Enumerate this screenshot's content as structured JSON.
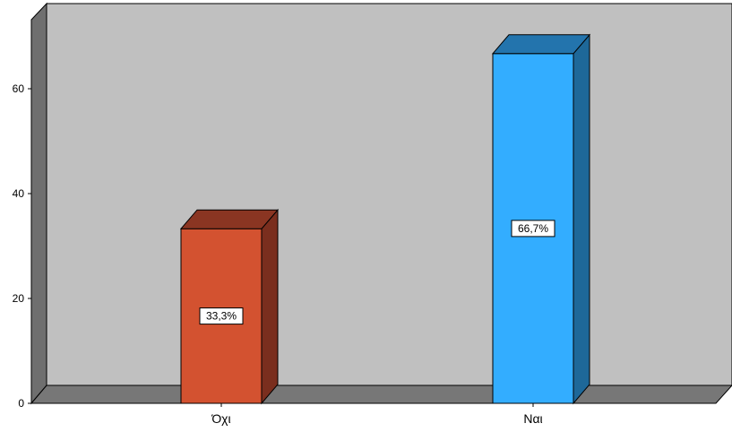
{
  "chart_data": {
    "type": "bar",
    "categories": [
      "Όχι",
      "Ναι"
    ],
    "values": [
      33.3,
      66.7
    ],
    "data_labels": [
      "33,3%",
      "66,7%"
    ],
    "colors": [
      "#d35230",
      "#33adff"
    ],
    "side_colors": [
      "#7a2e1e",
      "#1e6899"
    ],
    "top_colors": [
      "#8a3522",
      "#2374ad"
    ],
    "yticks": [
      0,
      20,
      40,
      60
    ],
    "ylim": [
      0,
      70
    ],
    "title": "",
    "xlabel": "",
    "ylabel": "",
    "grid": false,
    "legend": "none",
    "three_d": true,
    "background": "#c0c0c0",
    "floor_color": "#777777",
    "wall_color": "#6f6f6f"
  }
}
